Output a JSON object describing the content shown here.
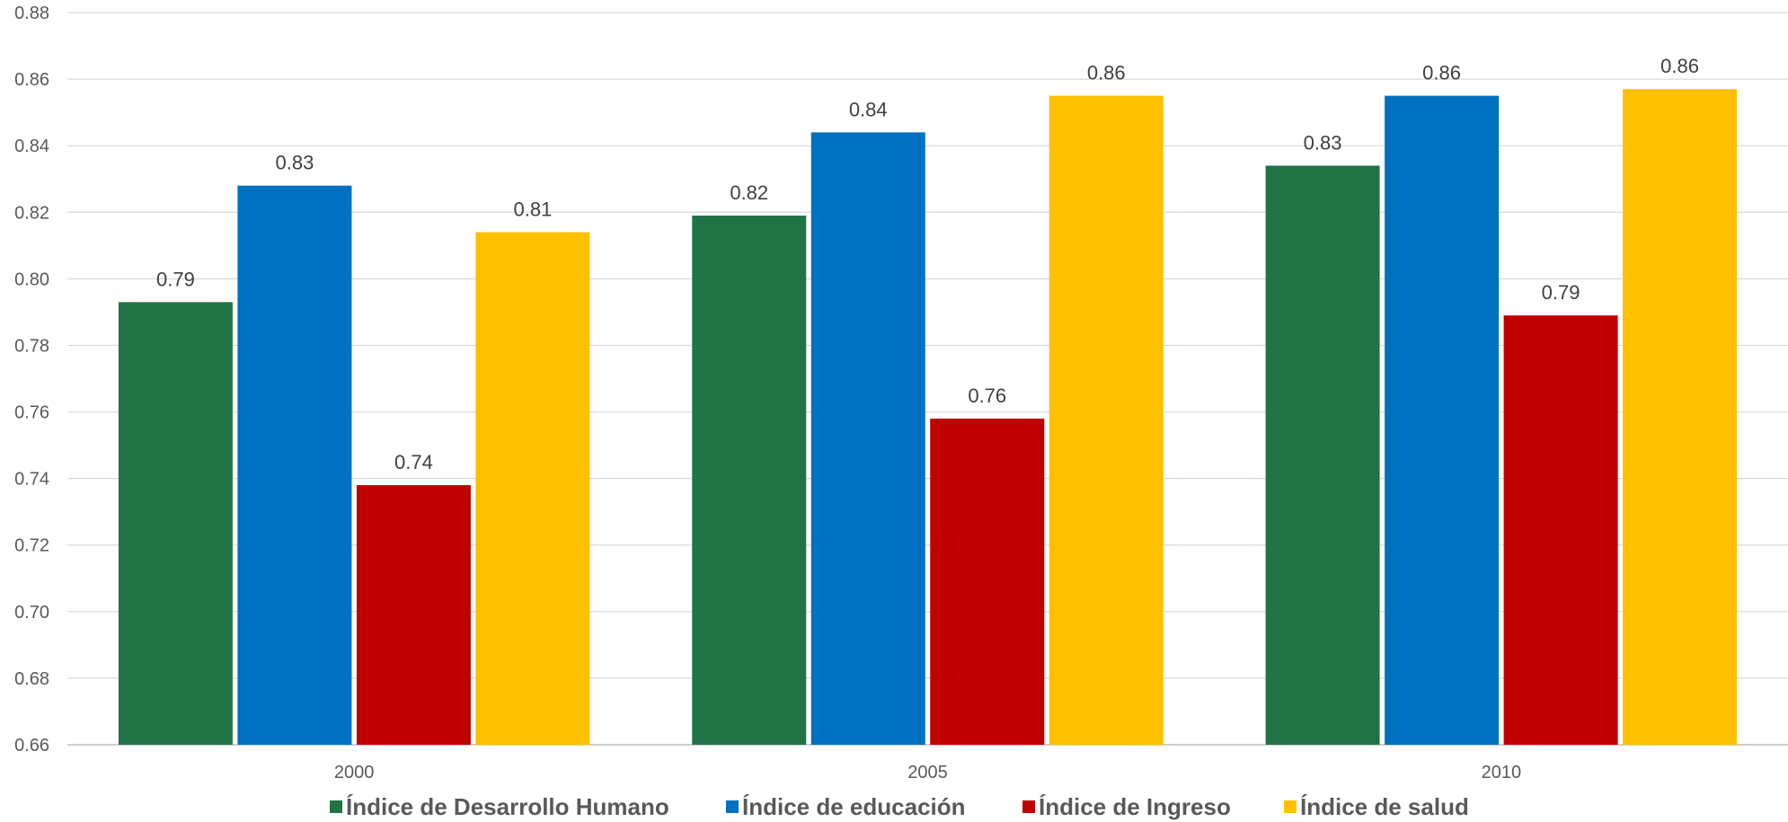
{
  "chart_data": {
    "type": "bar",
    "title": "",
    "xlabel": "",
    "ylabel": "",
    "categories": [
      "2000",
      "2005",
      "2010"
    ],
    "ylim": [
      0.66,
      0.88
    ],
    "yticks": [
      "0.66",
      "0.68",
      "0.70",
      "0.72",
      "0.74",
      "0.76",
      "0.78",
      "0.80",
      "0.82",
      "0.84",
      "0.86",
      "0.88"
    ],
    "grid": true,
    "legend_position": "bottom",
    "series": [
      {
        "name": "Índice de Desarrollo Humano",
        "color": "#217346",
        "values": [
          0.793,
          0.819,
          0.834
        ],
        "labels": [
          "0.79",
          "0.82",
          "0.83"
        ]
      },
      {
        "name": "Índice de educación",
        "color": "#0070C0",
        "values": [
          0.828,
          0.844,
          0.855
        ],
        "labels": [
          "0.83",
          "0.84",
          "0.86"
        ]
      },
      {
        "name": "Índice de Ingreso",
        "color": "#C00000",
        "values": [
          0.738,
          0.758,
          0.789
        ],
        "labels": [
          "0.74",
          "0.76",
          "0.79"
        ]
      },
      {
        "name": "Índice de salud",
        "color": "#FFC000",
        "values": [
          0.814,
          0.855,
          0.857
        ],
        "labels": [
          "0.81",
          "0.86",
          "0.86"
        ]
      }
    ]
  }
}
